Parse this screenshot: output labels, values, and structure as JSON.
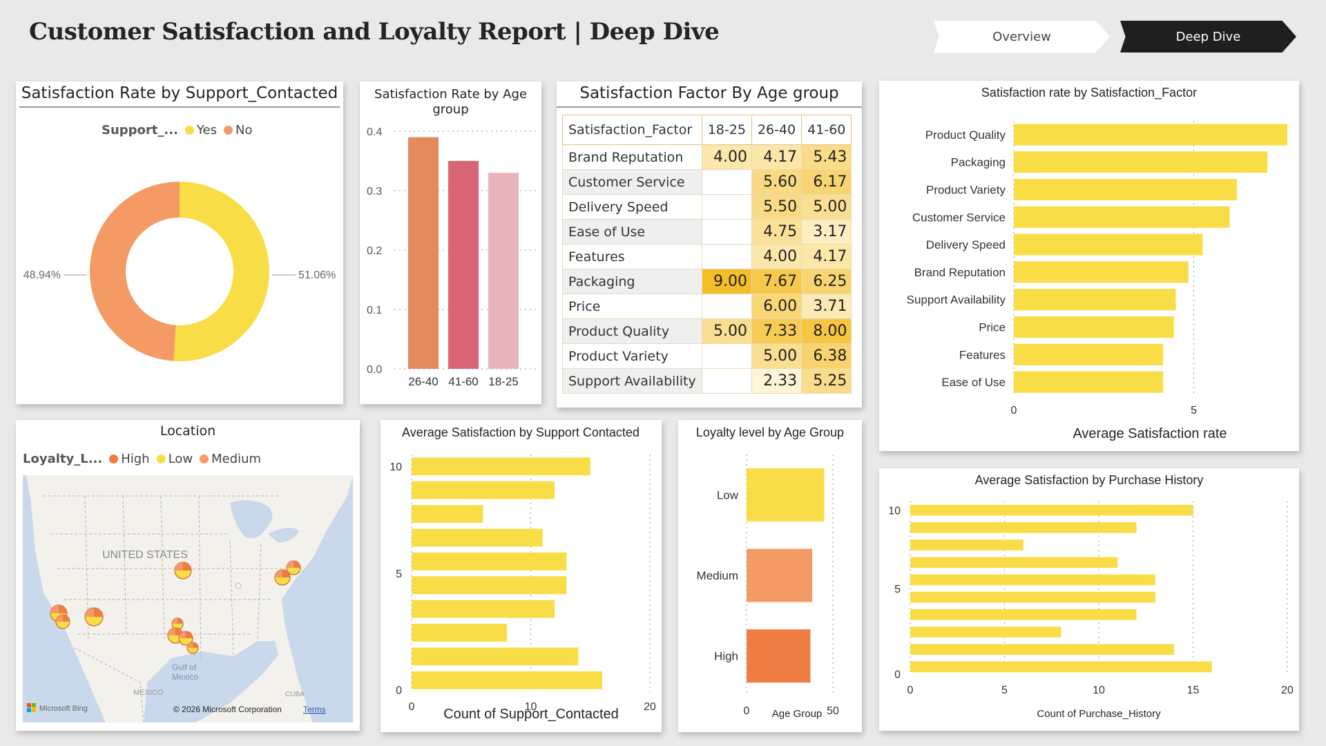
{
  "header": {
    "title": "Customer Satisfaction and Loyalty Report | Deep Dive"
  },
  "nav": {
    "overview": "Overview",
    "deep_dive": "Deep Dive"
  },
  "colors": {
    "yellow": "#f9dd47",
    "orange": "#f49b65",
    "dark_orange": "#ef7d43",
    "age_26_40": "#e38b5d",
    "age_41_60": "#d96473",
    "age_18_25": "#e9b4b9"
  },
  "donut": {
    "title": "Satisfaction Rate by Support_Contacted",
    "legend_title": "Support_...",
    "legend_items": [
      "Yes",
      "No"
    ]
  },
  "age_bar": {
    "title_line1": "Satisfaction Rate by Age",
    "title_line2": "group"
  },
  "matrix": {
    "title": "Satisfaction Factor By Age group",
    "headers": [
      "Satisfaction_Factor",
      "18-25",
      "26-40",
      "41-60"
    ],
    "rows": [
      {
        "label": "Brand Reputation",
        "v": [
          "4.00",
          "4.17",
          "5.43"
        ]
      },
      {
        "label": "Customer Service",
        "v": [
          "",
          "5.60",
          "6.17"
        ]
      },
      {
        "label": "Delivery Speed",
        "v": [
          "",
          "5.50",
          "5.00"
        ]
      },
      {
        "label": "Ease of Use",
        "v": [
          "",
          "4.75",
          "3.17"
        ]
      },
      {
        "label": "Features",
        "v": [
          "",
          "4.00",
          "4.17"
        ]
      },
      {
        "label": "Packaging",
        "v": [
          "9.00",
          "7.67",
          "6.25"
        ]
      },
      {
        "label": "Price",
        "v": [
          "",
          "6.00",
          "3.71"
        ]
      },
      {
        "label": "Product Quality",
        "v": [
          "5.00",
          "7.33",
          "8.00"
        ]
      },
      {
        "label": "Product Variety",
        "v": [
          "",
          "5.00",
          "6.38"
        ]
      },
      {
        "label": "Support Availability",
        "v": [
          "",
          "2.33",
          "5.25"
        ]
      }
    ]
  },
  "map": {
    "title": "Location",
    "legend_title": "Loyalty_L...",
    "legend_items": [
      "High",
      "Low",
      "Medium"
    ],
    "country_label": "UNITED STATES",
    "gulf_label_1": "Gulf of",
    "gulf_label_2": "Mexico",
    "mexico_label": "MEXICO",
    "cuba_label": "CUBA",
    "bing_label": "Microsoft Bing",
    "copyright": "© 2026 Microsoft Corporation",
    "terms": "Terms"
  },
  "chart_data": [
    {
      "type": "pie",
      "title": "Satisfaction Rate by Support_Contacted",
      "legend_title": "Support_...",
      "categories": [
        "Yes",
        "No"
      ],
      "values": [
        51.06,
        48.94
      ],
      "data_labels": [
        "51.06%",
        "48.94%"
      ],
      "colors": [
        "#f9dd47",
        "#f49b65"
      ],
      "legend": "top"
    },
    {
      "type": "bar",
      "title": "Satisfaction Rate by Age group",
      "categories": [
        "26-40",
        "41-60",
        "18-25"
      ],
      "values": [
        0.39,
        0.35,
        0.33
      ],
      "ylim": [
        0,
        0.4
      ],
      "yticks": [
        "0.0",
        "0.1",
        "0.2",
        "0.3",
        "0.4"
      ],
      "colors": [
        "#e38b5d",
        "#d96473",
        "#e9b4b9"
      ],
      "grid": true
    },
    {
      "type": "bar",
      "orientation": "horizontal",
      "title": "Satisfaction rate by Satisfaction_Factor",
      "categories": [
        "Product Quality",
        "Packaging",
        "Product Variety",
        "Customer Service",
        "Delivery Speed",
        "Brand Reputation",
        "Support Availability",
        "Price",
        "Features",
        "Ease of Use"
      ],
      "values": [
        7.6,
        7.05,
        6.2,
        6.0,
        5.25,
        4.85,
        4.5,
        4.45,
        4.15,
        4.15
      ],
      "xlabel": "Average Satisfaction rate",
      "xticks": [
        "0",
        "5"
      ],
      "xlim": [
        0,
        7.6
      ]
    },
    {
      "type": "bar",
      "orientation": "horizontal",
      "title": "Average Satisfaction by Support Contacted",
      "y": [
        10,
        9,
        8,
        7,
        6,
        5,
        4,
        3,
        2,
        1
      ],
      "values": [
        15,
        12,
        6,
        11,
        13,
        13,
        12,
        8,
        14,
        16
      ],
      "xlabel": "Count of Support_Contacted",
      "xticks": [
        "0",
        "10",
        "20"
      ],
      "yticks": [
        "0",
        "5",
        "10"
      ],
      "xlim": [
        0,
        20
      ]
    },
    {
      "type": "bar",
      "orientation": "horizontal",
      "title": "Loyalty level by Age Group",
      "categories": [
        "Low",
        "Medium",
        "High"
      ],
      "values": [
        45,
        38,
        37
      ],
      "colors": [
        "#f9dd47",
        "#f49b65",
        "#ef7d43"
      ],
      "xlabel": "Age Group",
      "xticks": [
        "0",
        "50"
      ],
      "xlim": [
        0,
        50
      ]
    },
    {
      "type": "bar",
      "orientation": "horizontal",
      "title": "Average Satisfaction by Purchase History",
      "y": [
        10,
        9,
        8,
        7,
        6,
        5,
        4,
        3,
        2,
        1
      ],
      "values": [
        15,
        12,
        6,
        11,
        13,
        13,
        12,
        8,
        14,
        16
      ],
      "xlabel": "Count of Purchase_History",
      "xticks": [
        "0",
        "5",
        "10",
        "15",
        "20"
      ],
      "yticks": [
        "0",
        "5",
        "10"
      ],
      "xlim": [
        0,
        20
      ]
    }
  ]
}
